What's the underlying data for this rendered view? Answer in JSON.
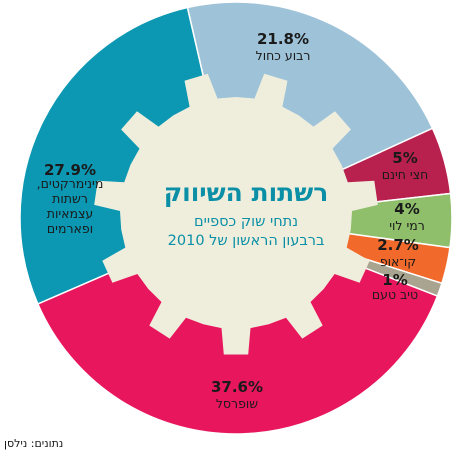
{
  "source_note": "נתונים: נילסן",
  "chart_data": {
    "type": "pie",
    "title": "רשתות השיווק",
    "subtitle_lines": [
      "נתחי שוק כספיים",
      "ברבעון הראשון של 2010"
    ],
    "slices": [
      {
        "id": "ravua-kahol",
        "label_lines": [
          "רבוע כחול"
        ],
        "value": 21.8,
        "value_label": "21.8%",
        "color": "#9ec3d9"
      },
      {
        "id": "hatzi-hinam",
        "label_lines": [
          "חצי חינם"
        ],
        "value": 5,
        "value_label": "5%",
        "color": "#b8214e"
      },
      {
        "id": "rami-levy",
        "label_lines": [
          "רמי לוי"
        ],
        "value": 4,
        "value_label": "4%",
        "color": "#8fbf6b"
      },
      {
        "id": "coop",
        "label_lines": [
          "קו־אופ"
        ],
        "value": 2.7,
        "value_label": "2.7%",
        "color": "#f26a2b"
      },
      {
        "id": "tiv-taam",
        "label_lines": [
          "טיב טעם"
        ],
        "value": 1,
        "value_label": "1%",
        "color": "#a9a490"
      },
      {
        "id": "shufersal",
        "label_lines": [
          "שופרסל"
        ],
        "value": 37.6,
        "value_label": "37.6%",
        "color": "#e8175d"
      },
      {
        "id": "minimarkets",
        "label_lines": [
          "מינימרקטים,",
          "רשתות",
          "עצמאיות",
          "ופארמים"
        ],
        "value": 27.9,
        "value_label": "27.9%",
        "color": "#0c97b2"
      }
    ],
    "gear_color": "#efeedd"
  }
}
